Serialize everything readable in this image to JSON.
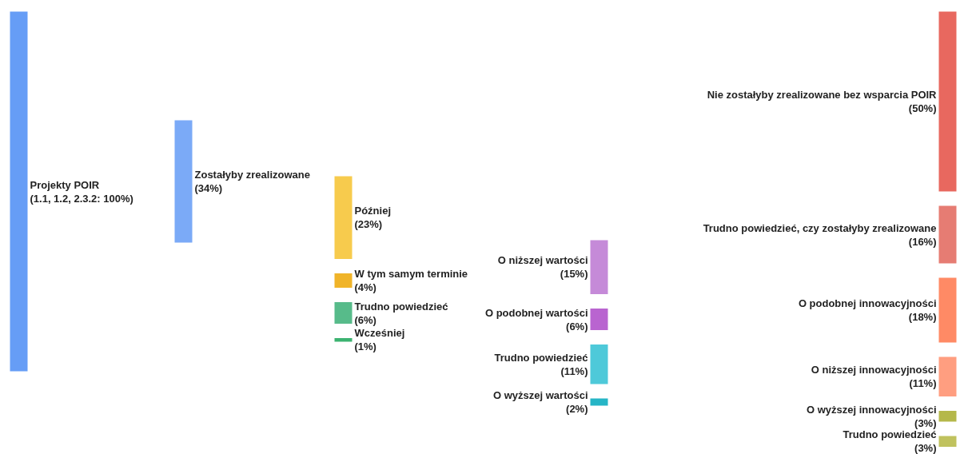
{
  "chart_data": [
    {
      "type": "other",
      "categories": [
        "Projekty POIR"
      ],
      "value_labels": [
        "(1.1, 1.2, 2.3.2: 100%)"
      ],
      "values": [
        100
      ],
      "colors": [
        "#669df6"
      ]
    },
    {
      "type": "other",
      "categories": [
        "Zostałyby zrealizowane"
      ],
      "value_labels": [
        "(34%)"
      ],
      "values": [
        34
      ],
      "colors": [
        "#7baaf7"
      ]
    },
    {
      "type": "other",
      "categories": [
        "Później",
        "W tym samym terminie",
        "Trudno powiedzieć",
        "Wcześniej"
      ],
      "value_labels": [
        "(23%)",
        "(4%)",
        "(6%)",
        "(1%)"
      ],
      "values": [
        23,
        4,
        6,
        1
      ],
      "colors": [
        "#f7cb4d",
        "#f0b429",
        "#57bb8a",
        "#3cb371"
      ]
    },
    {
      "type": "other",
      "categories": [
        "O niższej wartości",
        "O podobnej wartości",
        "Trudno powiedzieć",
        "O wyższej wartości"
      ],
      "value_labels": [
        "(15%)",
        "(6%)",
        "(11%)",
        "(2%)"
      ],
      "values": [
        15,
        6,
        11,
        2
      ],
      "colors": [
        "#c58ad8",
        "#b964d0",
        "#4ec9d9",
        "#26b5c6"
      ]
    },
    {
      "type": "other",
      "categories": [
        "Nie zostałyby zrealizowane bez wsparcia POIR",
        "Trudno powiedzieć, czy zostałyby zrealizowane",
        "O podobnej innowacyjności",
        "O niższej innowacyjności",
        "O wyższej innowacyjności",
        "Trudno powiedzieć"
      ],
      "value_labels": [
        "(50%)",
        "(16%)",
        "(18%)",
        "(11%)",
        "(3%)",
        "(3%)"
      ],
      "values": [
        50,
        16,
        18,
        11,
        3,
        3
      ],
      "colors": [
        "#e8685f",
        "#e67c73",
        "#ff8a65",
        "#ff9e80",
        "#b5b84a",
        "#c0c25e"
      ]
    }
  ]
}
